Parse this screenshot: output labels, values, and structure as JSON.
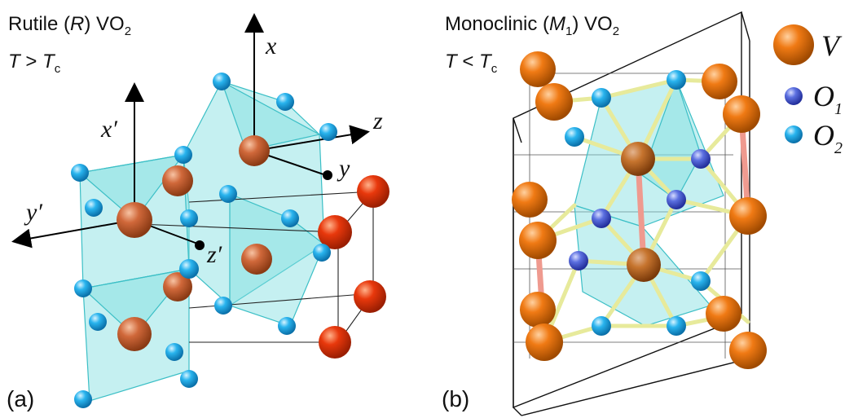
{
  "panel_a": {
    "title_main": "Rutile (",
    "title_italic": "R",
    "title_tail": ") VO",
    "title_sub": "2",
    "cond_T": "T",
    "cond_op": " > ",
    "cond_Tc": "T",
    "cond_sub": "c",
    "axes": {
      "x": "x",
      "y": "y",
      "z": "z",
      "xp": "x′",
      "yp": "y′",
      "zp": "z′"
    },
    "label": "(a)"
  },
  "panel_b": {
    "title_main": "Monoclinic (",
    "title_italic": "M",
    "title_italic_sub": "1",
    "title_tail": ") VO",
    "title_sub": "2",
    "cond_T": "T",
    "cond_op": " < ",
    "cond_Tc": "T",
    "cond_sub": "c",
    "label": "(b)"
  },
  "legend": {
    "v": "V",
    "o1": "O",
    "o1_sub": "1",
    "o2": "O",
    "o2_sub": "2"
  },
  "colors": {
    "v_orange": "#f07a14",
    "v_red": "#e23a0e",
    "v_brown": "#c8683a",
    "o1_blue": "#5b6fe0",
    "o2_cyan": "#23b2ec",
    "polyhedra": "#7fdde0",
    "bond_yellow": "#e7ea9b",
    "bond_pink": "#ef9a8f"
  }
}
